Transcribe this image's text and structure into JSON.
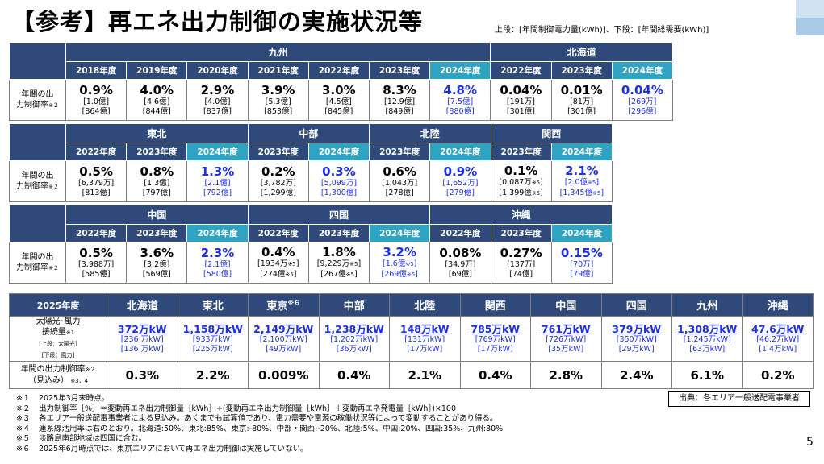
{
  "title": "【参考】再エネ出力制御の実施状況等",
  "subtitle": "上段：[年間制御電力量(kWh)]、下段：[年間総需要(kWh)]",
  "row_label": "年間の出力制御率",
  "row_label_note": "※２",
  "table1": {
    "regions": [
      {
        "name": "九州",
        "years": [
          {
            "year": "2018年度",
            "pct": "0.9%",
            "upper": "[1.0億]",
            "lower": "[864億]",
            "hl": false
          },
          {
            "year": "2019年度",
            "pct": "4.0%",
            "upper": "[4.6億]",
            "lower": "[844億]",
            "hl": false
          },
          {
            "year": "2020年度",
            "pct": "2.9%",
            "upper": "[4.0億]",
            "lower": "[837億]",
            "hl": false
          },
          {
            "year": "2021年度",
            "pct": "3.9%",
            "upper": "[5.3億]",
            "lower": "[853億]",
            "hl": false
          },
          {
            "year": "2022年度",
            "pct": "3.0%",
            "upper": "[4.5億]",
            "lower": "[845億]",
            "hl": false
          },
          {
            "year": "2023年度",
            "pct": "8.3%",
            "upper": "[12.9億]",
            "lower": "[849億]",
            "hl": false
          },
          {
            "year": "2024年度",
            "pct": "4.8%",
            "upper": "[7.5億]",
            "lower": "[880億]",
            "hl": true
          }
        ]
      },
      {
        "name": "北海道",
        "years": [
          {
            "year": "2022年度",
            "pct": "0.04%",
            "upper": "[191万]",
            "lower": "[301億]",
            "hl": false
          },
          {
            "year": "2023年度",
            "pct": "0.01%",
            "upper": "[81万]",
            "lower": "[301億]",
            "hl": false
          },
          {
            "year": "2024年度",
            "pct": "0.04%",
            "upper": "[269万]",
            "lower": "[296億]",
            "hl": true
          }
        ]
      }
    ]
  },
  "table2": {
    "regions": [
      {
        "name": "東北",
        "years": [
          {
            "year": "2022年度",
            "pct": "0.5%",
            "upper": "[6,379万]",
            "lower": "[813億]",
            "hl": false
          },
          {
            "year": "2023年度",
            "pct": "0.8%",
            "upper": "[1.3億]",
            "lower": "[797億]",
            "hl": false
          },
          {
            "year": "2024年度",
            "pct": "1.3%",
            "upper": "[2.1億]",
            "lower": "[792億]",
            "hl": true
          }
        ]
      },
      {
        "name": "中部",
        "years": [
          {
            "year": "2023年度",
            "pct": "0.2%",
            "upper": "[3,782万]",
            "lower": "[1,299億]",
            "hl": false
          },
          {
            "year": "2024年度",
            "pct": "0.3%",
            "upper": "[5,099万]",
            "lower": "[1,300億]",
            "hl": true
          }
        ]
      },
      {
        "name": "北陸",
        "years": [
          {
            "year": "2023年度",
            "pct": "0.6%",
            "upper": "[1,043万]",
            "lower": "[278億]",
            "hl": false
          },
          {
            "year": "2024年度",
            "pct": "0.9%",
            "upper": "[1,652万]",
            "lower": "[279億]",
            "hl": true
          }
        ]
      },
      {
        "name": "関西",
        "years": [
          {
            "year": "2023年度",
            "pct": "0.1%",
            "upper": "[0.087万※5]",
            "lower": "[1,399億※5]",
            "hl": false
          },
          {
            "year": "2024年度",
            "pct": "2.1%",
            "upper": "[2.0億※5]",
            "lower": "[1,345億※5]",
            "hl": true
          }
        ]
      }
    ]
  },
  "table3": {
    "regions": [
      {
        "name": "中国",
        "years": [
          {
            "year": "2022年度",
            "pct": "0.5%",
            "upper": "[3,988万]",
            "lower": "[585億]",
            "hl": false
          },
          {
            "year": "2023年度",
            "pct": "3.6%",
            "upper": "[3.2億]",
            "lower": "[569億]",
            "hl": false
          },
          {
            "year": "2024年度",
            "pct": "2.3%",
            "upper": "[2.1億]",
            "lower": "[580億]",
            "hl": true
          }
        ]
      },
      {
        "name": "四国",
        "years": [
          {
            "year": "2022年度",
            "pct": "0.4%",
            "upper": "[1934万※5]",
            "lower": "[274億※5]",
            "hl": false
          },
          {
            "year": "2023年度",
            "pct": "1.8%",
            "upper": "[9,229万※5]",
            "lower": "[267億※5]",
            "hl": false
          },
          {
            "year": "2024年度",
            "pct": "3.2%",
            "upper": "[1.6億※5]",
            "lower": "[269億※5]",
            "hl": true
          }
        ]
      },
      {
        "name": "沖縄",
        "years": [
          {
            "year": "2022年度",
            "pct": "0.08%",
            "upper": "[34.9万]",
            "lower": "[69億]",
            "hl": false
          },
          {
            "year": "2023年度",
            "pct": "0.27%",
            "upper": "[137万]",
            "lower": "[74億]",
            "hl": false
          },
          {
            "year": "2024年度",
            "pct": "0.15%",
            "upper": "[70万]",
            "lower": "[79億]",
            "hl": true
          }
        ]
      }
    ]
  },
  "table4": {
    "year_header": "2025年度",
    "row1_label": [
      "太陽光･風力",
      "接続量※1",
      "[上段：太陽光]",
      "[下段：風力]"
    ],
    "row2_label": [
      "年間の出力制御率※２",
      "（見込み）※3，4"
    ],
    "regions": [
      {
        "name": "北海道",
        "total": "372万kW",
        "solar": "[236 万kW]",
        "wind": "[136 万kW]",
        "rate": "0.3%"
      },
      {
        "name": "東北",
        "total": "1,158万kW",
        "solar": "[933万kW]",
        "wind": "[225万kW]",
        "rate": "2.2%"
      },
      {
        "name": "東京※６",
        "total": "2,149万kW",
        "solar": "[2,100万kW]",
        "wind": "[49万kW]",
        "rate": "0.009%"
      },
      {
        "name": "中部",
        "total": "1,238万kW",
        "solar": "[1,202万kW]",
        "wind": "[36万kW]",
        "rate": "0.4%"
      },
      {
        "name": "北陸",
        "total": "148万kW",
        "solar": "[131万kW]",
        "wind": "[17万kW]",
        "rate": "2.1%"
      },
      {
        "name": "関西",
        "total": "785万kW",
        "solar": "[769万kW]",
        "wind": "[17万kW]",
        "rate": "0.4%"
      },
      {
        "name": "中国",
        "total": "761万kW",
        "solar": "[726万kW]",
        "wind": "[35万kW]",
        "rate": "2.8%"
      },
      {
        "name": "四国",
        "total": "379万kW",
        "solar": "[350万kW]",
        "wind": "[29万kW]",
        "rate": "2.4%"
      },
      {
        "name": "九州",
        "total": "1,308万kW",
        "solar": "[1,245万kW]",
        "wind": "[63万kW]",
        "rate": "6.1%"
      },
      {
        "name": "沖縄",
        "total": "47.6万kW",
        "solar": "[46.2万kW]",
        "wind": "[1.4万kW]",
        "rate": "0.2%"
      }
    ]
  },
  "notes": [
    {
      "mark": "※１",
      "text": "2025年3月末時点。"
    },
    {
      "mark": "※２",
      "text": "出力制御率［%］＝変動再エネ出力制御量［kWh］÷(変動再エネ出力制御量［kWh］＋変動再エネ発電量［kWh］)×100"
    },
    {
      "mark": "※３",
      "text": "各エリア一般送配電事業者による見込み。あくまでも試算値であり、電力需要や電源の稼働状況等によって変動することがあり得る。"
    },
    {
      "mark": "※４",
      "text": "連系線活用率は右のとおり。北海道:50%、東北:85%、東京:-80%、中部・関西:-20%、北陸:5%、中国:20%、四国:35%、九州:80%"
    },
    {
      "mark": "※５",
      "text": "淡路島南部地域は四国に含む。"
    },
    {
      "mark": "※６",
      "text": "2025年6月時点では、東京エリアにおいて再エネ出力制御は実施していない。"
    }
  ],
  "source": "出典：各エリア一般送配電事業者",
  "page_number": "5"
}
